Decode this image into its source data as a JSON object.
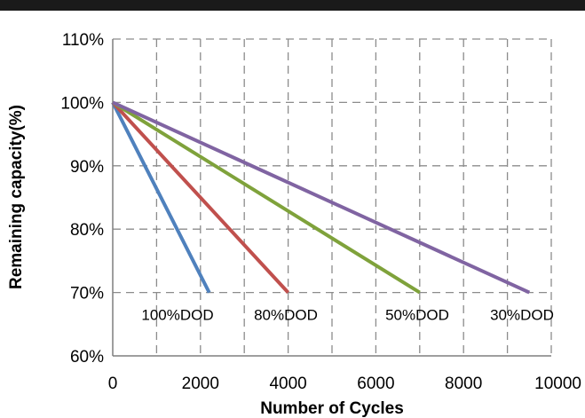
{
  "chart_data": {
    "type": "line",
    "title": "",
    "xlabel": "Number of Cycles",
    "ylabel": "Remaining capacity(%)",
    "xlim": [
      0,
      10000
    ],
    "ylim": [
      60,
      110
    ],
    "x_ticks": [
      0,
      2000,
      4000,
      6000,
      8000,
      10000
    ],
    "x_tick_labels": [
      "0",
      "2000",
      "4000",
      "6000",
      "8000",
      "10000"
    ],
    "y_ticks": [
      60,
      70,
      80,
      90,
      100,
      110
    ],
    "y_tick_labels": [
      "60%",
      "70%",
      "80%",
      "90%",
      "100%",
      "110%"
    ],
    "grid": true,
    "legend": "none",
    "series": [
      {
        "name": "100%DOD",
        "color": "#4F81BD",
        "x": [
          0,
          2200
        ],
        "y": [
          100,
          70
        ]
      },
      {
        "name": "80%DOD",
        "color": "#C0504D",
        "x": [
          0,
          4000
        ],
        "y": [
          100,
          70
        ]
      },
      {
        "name": "50%DOD",
        "color": "#7FA23B",
        "x": [
          0,
          7000
        ],
        "y": [
          100,
          70
        ]
      },
      {
        "name": "30%DOD",
        "color": "#8064A2",
        "x": [
          0,
          9500
        ],
        "y": [
          100,
          70
        ]
      }
    ]
  }
}
